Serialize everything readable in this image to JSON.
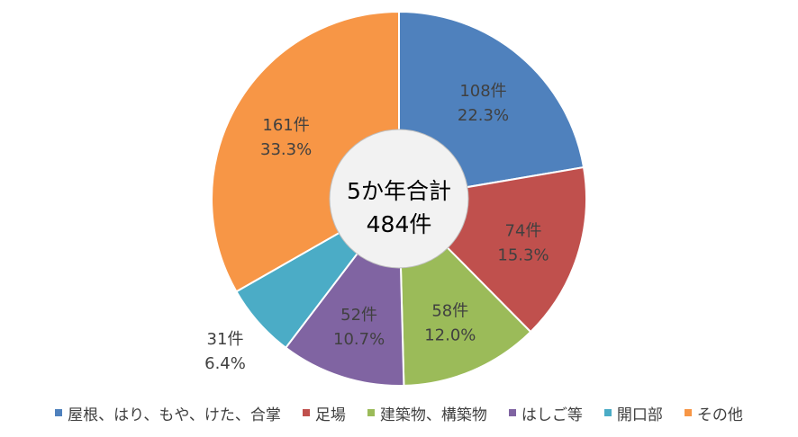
{
  "chart_data": {
    "type": "pie",
    "center_label": [
      "5か年合計",
      "484件"
    ],
    "total": 484,
    "categories": [
      "屋根、はり、もや、けた、合掌",
      "足場",
      "建築物、構築物",
      "はしご等",
      "開口部",
      "その他"
    ],
    "values": [
      108,
      74,
      58,
      52,
      31,
      161
    ],
    "count_labels": [
      "108件",
      "74件",
      "58件",
      "52件",
      "31件",
      "161件"
    ],
    "percent_labels": [
      "22.3%",
      "15.3%",
      "12.0%",
      "10.7%",
      "6.4%",
      "33.3%"
    ],
    "colors": [
      "#4F81BD",
      "#C0504D",
      "#9BBB59",
      "#8064A2",
      "#4BACC6",
      "#F79646"
    ],
    "legend_position": "bottom"
  }
}
